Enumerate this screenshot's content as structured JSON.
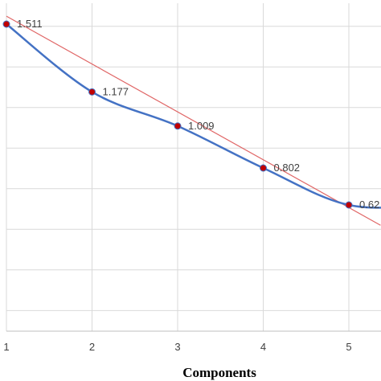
{
  "chart_data": {
    "type": "line",
    "xlabel": "Components",
    "ylabel": "",
    "title": "",
    "x": [
      1,
      2,
      3,
      4,
      5,
      6
    ],
    "x_tick_labels": [
      "1",
      "2",
      "3",
      "4",
      "5"
    ],
    "xlim": [
      1,
      5.37
    ],
    "ylim": [
      0.1,
      1.6
    ],
    "grid": true,
    "series": [
      {
        "values": [
          1.511,
          1.177,
          1.009,
          0.802,
          0.62,
          0.62
        ],
        "data_labels": [
          "1.511",
          "1.177",
          "1.009",
          "0.802",
          "0.62"
        ],
        "color": "#4472C4",
        "marker_color": "#C00000",
        "smooth": true
      }
    ],
    "trendline": {
      "type": "linear",
      "x": [
        1,
        5.37
      ],
      "values": [
        1.55,
        0.52
      ],
      "color": "#E06666"
    }
  }
}
